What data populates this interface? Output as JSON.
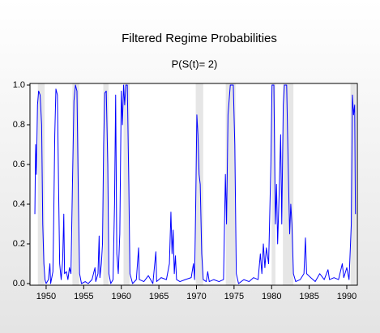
{
  "chart_data": {
    "type": "line",
    "title": "Filtered Regime Probabilities",
    "subtitle": "P(S(t)= 2)",
    "xlim": [
      1947.85,
      1991.4
    ],
    "ylim": [
      0,
      1
    ],
    "xticks": [
      1950,
      1955,
      1960,
      1965,
      1970,
      1975,
      1980,
      1985,
      1990
    ],
    "yticks": [
      {
        "value": 0,
        "label": "0.0"
      },
      0.2,
      0.4,
      0.6,
      0.8,
      {
        "value": 1,
        "label": "1.0"
      }
    ],
    "shade_color": "#e6e6e6",
    "shaded_periods": [
      [
        1948.9,
        1949.8
      ],
      [
        1953.5,
        1954.4
      ],
      [
        1957.6,
        1958.3
      ],
      [
        1960.3,
        1961.1
      ],
      [
        1969.9,
        1970.9
      ],
      [
        1973.9,
        1975.2
      ],
      [
        1980.0,
        1980.5
      ],
      [
        1981.5,
        1982.9
      ],
      [
        1990.5,
        1991.2
      ]
    ],
    "series": [
      {
        "color": "#0000ff",
        "x": [
          1948.5,
          1948.6,
          1948.7,
          1948.85,
          1949.0,
          1949.2,
          1949.4,
          1949.55,
          1949.7,
          1949.85,
          1950.0,
          1950.3,
          1950.5,
          1950.6,
          1950.9,
          1951.0,
          1951.15,
          1951.3,
          1951.5,
          1951.65,
          1951.8,
          1952.0,
          1952.2,
          1952.35,
          1952.45,
          1952.7,
          1952.9,
          1953.1,
          1953.3,
          1953.5,
          1953.7,
          1953.9,
          1954.1,
          1954.3,
          1954.45,
          1954.7,
          1955.2,
          1955.6,
          1956.1,
          1956.5,
          1956.6,
          1956.9,
          1957.05,
          1957.15,
          1957.35,
          1957.5,
          1957.65,
          1957.8,
          1958.0,
          1958.2,
          1958.35,
          1958.6,
          1958.9,
          1959.1,
          1959.25,
          1959.4,
          1959.6,
          1959.8,
          1960.0,
          1960.15,
          1960.3,
          1960.45,
          1960.6,
          1960.8,
          1961.0,
          1961.15,
          1961.5,
          1962.0,
          1962.3,
          1962.4,
          1963.0,
          1963.6,
          1964.2,
          1964.6,
          1964.7,
          1965.3,
          1966.0,
          1966.4,
          1966.6,
          1966.75,
          1966.9,
          1967.05,
          1967.2,
          1967.35,
          1967.8,
          1968.5,
          1969.3,
          1969.6,
          1969.75,
          1969.9,
          1970.05,
          1970.2,
          1970.35,
          1970.5,
          1970.7,
          1970.9,
          1971.3,
          1971.5,
          1971.7,
          1972.3,
          1973.0,
          1973.6,
          1973.85,
          1974.0,
          1974.2,
          1974.5,
          1974.9,
          1975.1,
          1975.3,
          1975.6,
          1976.3,
          1977.0,
          1977.6,
          1978.2,
          1978.5,
          1978.7,
          1978.9,
          1979.1,
          1979.3,
          1979.6,
          1979.9,
          1980.05,
          1980.3,
          1980.5,
          1980.65,
          1980.8,
          1981.0,
          1981.2,
          1981.35,
          1981.55,
          1981.7,
          1982.0,
          1982.2,
          1982.4,
          1982.55,
          1982.7,
          1982.9,
          1983.2,
          1983.8,
          1984.3,
          1984.5,
          1984.65,
          1985.2,
          1985.8,
          1986.4,
          1987.0,
          1987.5,
          1987.7,
          1988.3,
          1988.9,
          1989.4,
          1989.6,
          1990.0,
          1990.3,
          1990.6,
          1990.75,
          1990.9,
          1991.05,
          1991.15
        ],
        "values": [
          0.35,
          0.7,
          0.55,
          0.9,
          0.97,
          0.95,
          0.8,
          0.3,
          0.1,
          0.02,
          0.0,
          0.02,
          0.1,
          0.0,
          0.06,
          0.3,
          0.75,
          0.98,
          0.95,
          0.5,
          0.1,
          0.02,
          0.12,
          0.35,
          0.05,
          0.06,
          0.02,
          0.08,
          0.05,
          0.5,
          0.92,
          1.0,
          0.97,
          0.4,
          0.05,
          0.0,
          0.01,
          0.0,
          0.02,
          0.08,
          0.01,
          0.05,
          0.24,
          0.03,
          0.1,
          0.2,
          0.7,
          0.96,
          0.97,
          0.6,
          0.05,
          0.0,
          0.02,
          0.4,
          0.95,
          0.15,
          0.05,
          0.25,
          0.97,
          0.8,
          1.0,
          0.9,
          1.0,
          1.0,
          0.5,
          0.05,
          0.0,
          0.02,
          0.18,
          0.02,
          0.01,
          0.04,
          0.0,
          0.16,
          0.01,
          0.03,
          0.02,
          0.1,
          0.36,
          0.15,
          0.27,
          0.05,
          0.14,
          0.02,
          0.01,
          0.02,
          0.03,
          0.1,
          0.02,
          0.4,
          0.85,
          0.75,
          0.55,
          0.5,
          0.15,
          0.02,
          0.01,
          0.06,
          0.01,
          0.02,
          0.01,
          0.02,
          0.55,
          0.3,
          0.85,
          1.0,
          1.0,
          0.7,
          0.05,
          0.0,
          0.02,
          0.01,
          0.03,
          0.02,
          0.15,
          0.05,
          0.2,
          0.08,
          0.18,
          0.1,
          0.6,
          1.0,
          1.0,
          0.3,
          0.5,
          0.2,
          0.45,
          0.75,
          0.3,
          0.9,
          1.0,
          1.0,
          0.6,
          0.25,
          0.4,
          0.3,
          0.05,
          0.01,
          0.02,
          0.05,
          0.23,
          0.05,
          0.03,
          0.01,
          0.05,
          0.02,
          0.07,
          0.02,
          0.03,
          0.02,
          0.1,
          0.03,
          0.08,
          0.02,
          0.3,
          0.95,
          0.85,
          0.9,
          0.35
        ]
      }
    ]
  }
}
